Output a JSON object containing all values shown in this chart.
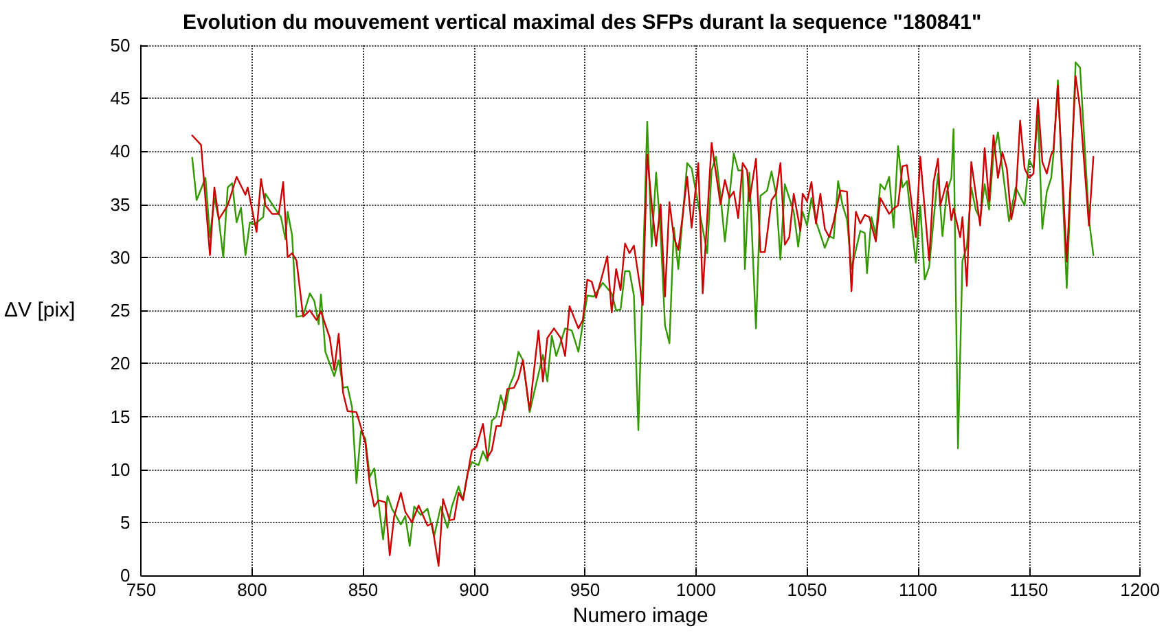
{
  "chart_data": {
    "type": "line",
    "title": "Evolution du mouvement vertical maximal des SFPs durant la sequence \"180841\"",
    "xlabel": "Numero image",
    "ylabel": "ΔV [pix]",
    "xlim": [
      750,
      1200
    ],
    "xticks": [
      750,
      800,
      850,
      900,
      950,
      1000,
      1050,
      1100,
      1150,
      1200
    ],
    "ylim": [
      0,
      50
    ],
    "yticks": [
      0,
      5,
      10,
      15,
      20,
      25,
      30,
      35,
      40,
      45,
      50
    ],
    "grid": true,
    "marker": "none",
    "line_style": "solid",
    "series": [
      {
        "color": "#339900",
        "x": [
          773,
          775,
          779,
          781,
          783,
          785,
          787,
          789,
          791,
          793,
          795,
          797,
          799,
          801,
          805,
          806,
          810,
          813,
          815,
          816,
          818,
          820,
          823,
          826,
          828,
          830,
          831,
          833,
          837,
          839,
          841,
          843,
          845,
          847,
          849,
          851,
          853,
          855,
          859,
          861,
          863,
          867,
          869,
          871,
          873,
          876,
          879,
          882,
          885,
          888,
          890,
          893,
          895,
          897,
          899,
          902,
          904,
          906,
          908,
          910,
          912,
          914,
          916,
          918,
          920,
          922,
          925,
          928,
          931,
          933,
          935,
          937,
          941,
          944,
          947,
          951,
          954,
          958,
          962,
          964,
          966,
          968,
          970,
          972,
          974,
          978,
          980,
          982,
          984,
          986,
          988,
          990,
          992,
          996,
          998,
          1001,
          1005,
          1007,
          1009,
          1011,
          1013,
          1017,
          1019,
          1021,
          1022,
          1024,
          1027,
          1029,
          1032,
          1034,
          1036,
          1038,
          1040,
          1042,
          1044,
          1046,
          1048,
          1050,
          1052,
          1054,
          1058,
          1060,
          1062,
          1064,
          1066,
          1068,
          1070,
          1074,
          1076,
          1077,
          1079,
          1081,
          1083,
          1085,
          1087,
          1089,
          1091,
          1093,
          1095,
          1099,
          1101,
          1103,
          1105,
          1109,
          1111,
          1113,
          1115,
          1116,
          1118,
          1120,
          1122,
          1124,
          1126,
          1128,
          1130,
          1132,
          1134,
          1136,
          1138,
          1141,
          1144,
          1148,
          1150,
          1152,
          1154,
          1156,
          1158,
          1160,
          1161,
          1163,
          1167,
          1171,
          1173,
          1177,
          1179
        ],
        "values": [
          39.4,
          35.4,
          37.5,
          31.9,
          35.6,
          33.6,
          30,
          36.6,
          37,
          33.3,
          34.7,
          30.2,
          33.3,
          33.1,
          33.8,
          36,
          34.7,
          33.8,
          31.7,
          34.3,
          32.1,
          24.4,
          24.5,
          26.6,
          25.9,
          23.7,
          26.5,
          21.1,
          18.8,
          20.3,
          17.7,
          17.8,
          15.9,
          8.7,
          13.6,
          12.9,
          9.3,
          10.1,
          3.4,
          7.5,
          6.3,
          4.8,
          5.6,
          2.8,
          6.5,
          5.7,
          6.3,
          3.7,
          6.5,
          4.5,
          6.5,
          8.4,
          7.1,
          9.6,
          10.7,
          10.4,
          11.7,
          10.8,
          14.6,
          15,
          17,
          15.6,
          17.9,
          18.9,
          21.1,
          20.3,
          15.4,
          18.1,
          20.8,
          18.3,
          22.6,
          20.7,
          23.3,
          23.1,
          21.1,
          26.4,
          26.3,
          27.6,
          26.6,
          25,
          25.1,
          28.7,
          28.7,
          26.4,
          13.7,
          42.8,
          31,
          38,
          32.4,
          23.6,
          21.9,
          32.8,
          28.9,
          38.9,
          38.4,
          35,
          30.4,
          38.2,
          39.5,
          35.8,
          31.5,
          39.8,
          38.2,
          38.2,
          28.9,
          38,
          23.3,
          35.8,
          36.3,
          38.1,
          36,
          29.8,
          36.9,
          35.6,
          34.3,
          31,
          34.3,
          33,
          35.6,
          33.4,
          30.9,
          32,
          31.8,
          37.2,
          34.9,
          33.6,
          28.9,
          32.5,
          32.3,
          28.5,
          33.8,
          32.1,
          36.9,
          36.4,
          37.6,
          32.8,
          40.5,
          36.6,
          37.2,
          29.5,
          34.9,
          27.9,
          29.1,
          37.9,
          32,
          36.2,
          37.5,
          42.1,
          12,
          29.7,
          31,
          36.6,
          34.5,
          33.6,
          36.9,
          34.5,
          39.7,
          41.8,
          38.4,
          33.4,
          36.6,
          34.9,
          39.2,
          38.4,
          43.4,
          32.7,
          36.2,
          37.5,
          39.7,
          46.7,
          27.1,
          48.4,
          47.9,
          33.6,
          30.2
        ]
      },
      {
        "color": "#cc0000",
        "x": [
          773,
          777,
          781,
          783,
          785,
          789,
          793,
          797,
          798,
          802,
          804,
          806,
          809,
          812,
          814,
          816,
          818,
          820,
          823,
          826,
          829,
          831,
          835,
          837,
          839,
          841,
          843,
          847,
          849,
          851,
          853,
          855,
          857,
          860,
          862,
          864,
          867,
          869,
          872,
          875,
          879,
          881,
          884,
          886,
          889,
          891,
          893,
          895,
          899,
          901,
          904,
          906,
          908,
          910,
          912,
          915,
          918,
          920,
          922,
          925,
          929,
          931,
          933,
          936,
          939,
          941,
          943,
          947,
          949,
          951,
          953,
          955,
          958,
          960,
          962,
          964,
          966,
          968,
          970,
          972,
          976,
          978,
          980,
          982,
          984,
          986,
          988,
          990,
          992,
          994,
          996,
          998,
          1001,
          1003,
          1007,
          1011,
          1013,
          1015,
          1017,
          1019,
          1021,
          1023,
          1024,
          1027,
          1029,
          1031,
          1034,
          1036,
          1038,
          1040,
          1042,
          1044,
          1047,
          1048,
          1050,
          1052,
          1054,
          1056,
          1058,
          1060,
          1062,
          1065,
          1068,
          1070,
          1072,
          1074,
          1076,
          1078,
          1081,
          1083,
          1087,
          1089,
          1091,
          1093,
          1095,
          1099,
          1101,
          1105,
          1107,
          1109,
          1110,
          1113,
          1115,
          1116,
          1119,
          1120,
          1122,
          1124,
          1128,
          1130,
          1132,
          1134,
          1136,
          1138,
          1140,
          1142,
          1144,
          1146,
          1148,
          1150,
          1152,
          1154,
          1156,
          1158,
          1160,
          1161,
          1163,
          1167,
          1171,
          1173,
          1177,
          1179
        ],
        "values": [
          41.5,
          40.6,
          30.2,
          36.6,
          33.6,
          34.9,
          37.6,
          35.9,
          36.6,
          32.4,
          37.4,
          34.9,
          34.1,
          34.1,
          37.1,
          30,
          30.4,
          29.7,
          24.4,
          25,
          24.1,
          24.9,
          22.4,
          19.4,
          22.8,
          17.2,
          15.5,
          15.4,
          14,
          12.5,
          8.6,
          6.5,
          7.1,
          6.9,
          1.9,
          5.6,
          7.8,
          6,
          5,
          6.6,
          4.7,
          4.9,
          0.9,
          7.2,
          5.2,
          5.3,
          7.8,
          7.1,
          11.8,
          12.1,
          14.3,
          11.1,
          11.8,
          14.1,
          14.1,
          17.6,
          17.7,
          18.6,
          20.3,
          15.6,
          23.1,
          18.3,
          22.4,
          23.3,
          22.4,
          20.7,
          25.4,
          23.3,
          24.1,
          27.9,
          27.7,
          26.2,
          28.5,
          30.1,
          24.8,
          28.9,
          26.9,
          31.3,
          30.4,
          31.1,
          25.5,
          39.7,
          35,
          31.1,
          35,
          26.3,
          35.2,
          31.9,
          30.7,
          34,
          37.6,
          32.8,
          38.9,
          26.6,
          40.8,
          35,
          37.3,
          35.6,
          36.2,
          33.7,
          38.9,
          38.2,
          35.3,
          39.3,
          30.5,
          30.5,
          35.4,
          36,
          38.9,
          31.2,
          31.9,
          36,
          32.5,
          36,
          35.3,
          37.1,
          33.2,
          36,
          32.7,
          31.9,
          33.4,
          36.3,
          36.2,
          26.8,
          34.3,
          33.2,
          34,
          33.8,
          31.5,
          35.6,
          34.1,
          34.6,
          34.9,
          38.6,
          38.7,
          31.9,
          39.5,
          29.7,
          37.1,
          39.3,
          34.9,
          37.1,
          33.5,
          34.6,
          31.9,
          33.8,
          27.3,
          39,
          33,
          40.3,
          35.3,
          41.5,
          37.5,
          39.9,
          38.4,
          33.6,
          35.6,
          42.9,
          38.4,
          37.5,
          37.9,
          44.9,
          39,
          37.9,
          39.7,
          40.1,
          46.2,
          29.6,
          47.1,
          44,
          33,
          39.5
        ]
      }
    ]
  }
}
